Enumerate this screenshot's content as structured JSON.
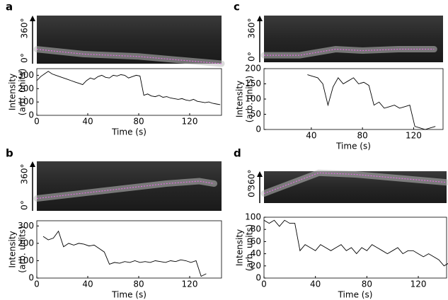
{
  "chart_data": [
    {
      "type": "line",
      "panel": "a",
      "kymo_top": "360°",
      "kymo_bottom": "0°",
      "ylabel": "Intensity",
      "ylabel2": "(arb. units)",
      "xlabel": "Time (s)",
      "xlim": [
        0,
        145
      ],
      "xticks": [
        0,
        40,
        80,
        120
      ],
      "ylim": [
        0,
        350
      ],
      "yticks": [
        0,
        100,
        200,
        300
      ],
      "color": "#000000",
      "x": [
        0,
        3,
        6,
        9,
        12,
        15,
        18,
        21,
        24,
        27,
        30,
        33,
        36,
        39,
        42,
        45,
        48,
        51,
        54,
        57,
        60,
        63,
        66,
        69,
        72,
        75,
        78,
        81,
        84,
        87,
        90,
        93,
        96,
        99,
        102,
        105,
        108,
        111,
        114,
        117,
        120,
        123,
        126,
        129,
        132,
        135,
        138,
        141,
        144
      ],
      "values": [
        260,
        290,
        310,
        330,
        310,
        300,
        290,
        280,
        270,
        260,
        250,
        240,
        230,
        260,
        280,
        270,
        290,
        300,
        285,
        280,
        300,
        295,
        305,
        300,
        280,
        290,
        300,
        295,
        150,
        160,
        145,
        140,
        150,
        135,
        140,
        130,
        125,
        120,
        125,
        115,
        110,
        120,
        105,
        100,
        95,
        100,
        90,
        85,
        80
      ]
    },
    {
      "type": "line",
      "panel": "b",
      "kymo_top": "360°",
      "kymo_bottom": "0°",
      "ylabel": "Intensity",
      "ylabel2": "(arb. units)",
      "xlabel": "Time (s)",
      "xlim": [
        0,
        145
      ],
      "xticks": [
        0,
        40,
        80,
        120
      ],
      "ylim": [
        0,
        330
      ],
      "yticks": [
        0,
        100,
        200,
        300
      ],
      "color": "#000000",
      "x": [
        5,
        9,
        13,
        17,
        21,
        25,
        29,
        33,
        37,
        41,
        45,
        49,
        53,
        57,
        61,
        65,
        69,
        73,
        77,
        81,
        85,
        89,
        93,
        97,
        101,
        105,
        109,
        113,
        117,
        121,
        125,
        129,
        133
      ],
      "values": [
        240,
        220,
        230,
        270,
        180,
        200,
        190,
        200,
        195,
        185,
        190,
        170,
        150,
        80,
        90,
        85,
        95,
        90,
        100,
        90,
        95,
        90,
        100,
        95,
        90,
        100,
        95,
        105,
        100,
        90,
        100,
        10,
        25
      ]
    },
    {
      "type": "line",
      "panel": "c",
      "kymo_top": "360°",
      "kymo_bottom": "0°",
      "ylabel": "Intensity",
      "ylabel2": "(arb. units)",
      "xlabel": "Time (s)",
      "xlim": [
        3,
        143
      ],
      "xticks": [
        40,
        80,
        120
      ],
      "ylim": [
        0,
        200
      ],
      "yticks": [
        0,
        50,
        100,
        150,
        200
      ],
      "color": "#000000",
      "x": [
        37,
        41,
        45,
        49,
        53,
        57,
        61,
        65,
        69,
        73,
        77,
        81,
        85,
        89,
        93,
        97,
        101,
        105,
        109,
        113,
        117,
        121,
        125,
        129,
        133,
        137
      ],
      "values": [
        180,
        175,
        170,
        150,
        80,
        140,
        170,
        150,
        160,
        170,
        150,
        155,
        145,
        80,
        90,
        70,
        75,
        80,
        70,
        75,
        80,
        10,
        5,
        0,
        5,
        10
      ]
    },
    {
      "type": "line",
      "panel": "d",
      "kymo_top": "360°",
      "kymo_bottom": "0°",
      "ylabel": "Intensity",
      "ylabel2": "(arb. units)",
      "xlabel": "Time (s)",
      "xlim": [
        0,
        142
      ],
      "xticks": [
        0,
        40,
        80,
        120
      ],
      "ylim": [
        0,
        100
      ],
      "yticks": [
        0,
        20,
        40,
        60,
        80,
        100
      ],
      "color": "#000000",
      "x": [
        0,
        4,
        8,
        12,
        16,
        20,
        24,
        28,
        32,
        36,
        40,
        44,
        48,
        52,
        56,
        60,
        64,
        68,
        72,
        76,
        80,
        84,
        88,
        92,
        96,
        100,
        104,
        108,
        112,
        116,
        120,
        124,
        128,
        132,
        136,
        140,
        144
      ],
      "values": [
        95,
        90,
        95,
        85,
        95,
        90,
        90,
        45,
        55,
        50,
        45,
        55,
        50,
        45,
        50,
        55,
        45,
        50,
        40,
        50,
        45,
        55,
        50,
        45,
        40,
        45,
        50,
        40,
        45,
        45,
        40,
        35,
        40,
        35,
        30,
        20,
        25
      ]
    }
  ]
}
